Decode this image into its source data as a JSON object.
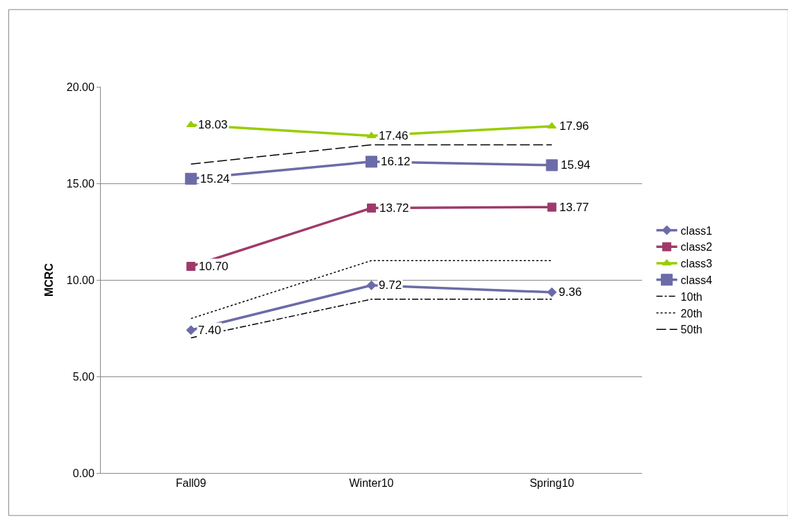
{
  "chart_data": {
    "type": "line",
    "ylabel": "MCRC",
    "categories": [
      "Fall09",
      "Winter10",
      "Spring10"
    ],
    "ylim": [
      0,
      20
    ],
    "yticks": [
      {
        "value": 0,
        "label": "0.00"
      },
      {
        "value": 5,
        "label": "5.00"
      },
      {
        "value": 10,
        "label": "10.00"
      },
      {
        "value": 15,
        "label": "15.00"
      },
      {
        "value": 20,
        "label": "20.00"
      }
    ],
    "grid": "y",
    "legend": "right",
    "series": [
      {
        "name": "class1",
        "color": "#6b6ba8",
        "values": [
          7.4,
          9.72,
          9.36
        ],
        "value_labels": [
          "7.40",
          "9.72",
          "9.36"
        ],
        "marker": "diamond",
        "line_style": "solid"
      },
      {
        "name": "class2",
        "color": "#9e3a6a",
        "values": [
          10.7,
          13.72,
          13.77
        ],
        "value_labels": [
          "10.70",
          "13.72",
          "13.77"
        ],
        "marker": "square",
        "line_style": "solid"
      },
      {
        "name": "class3",
        "color": "#99cc00",
        "values": [
          18.03,
          17.46,
          17.96
        ],
        "value_labels": [
          "18.03",
          "17.46",
          "17.96"
        ],
        "marker": "triangle",
        "line_style": "solid"
      },
      {
        "name": "class4",
        "color": "#6b6ba8",
        "values": [
          15.24,
          16.12,
          15.94
        ],
        "value_labels": [
          "15.24",
          "16.12",
          "15.94"
        ],
        "marker": "square",
        "line_style": "solid"
      },
      {
        "name": "10th",
        "color": "#000000",
        "values": [
          7,
          9,
          9
        ],
        "marker": "none",
        "line_style": "dashdot"
      },
      {
        "name": "20th",
        "color": "#000000",
        "values": [
          8,
          11,
          11
        ],
        "marker": "none",
        "line_style": "dotted"
      },
      {
        "name": "50th",
        "color": "#000000",
        "values": [
          16,
          17,
          17
        ],
        "marker": "none",
        "line_style": "dashed"
      }
    ]
  }
}
